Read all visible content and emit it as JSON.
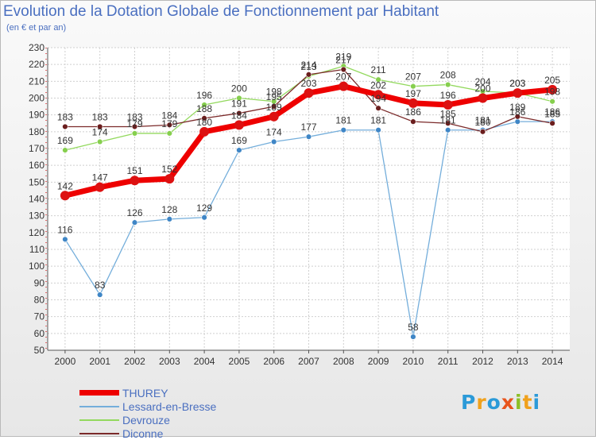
{
  "title": "Evolution de la Dotation Globale de Fonctionnement par Habitant",
  "subtitle": "(en € et par an)",
  "logo": {
    "letters": [
      {
        "ch": "P",
        "color": "#2b9ad8"
      },
      {
        "ch": "r",
        "color": "#f0a11c"
      },
      {
        "ch": "o",
        "color": "#2b9ad8"
      },
      {
        "ch": "x",
        "color": "#e8541c"
      },
      {
        "ch": "i",
        "color": "#8cbf26"
      },
      {
        "ch": "t",
        "color": "#f0a11c"
      },
      {
        "ch": "i",
        "color": "#2b9ad8"
      }
    ]
  },
  "chart_data": {
    "type": "line",
    "title": "Evolution de la Dotation Globale de Fonctionnement par Habitant",
    "subtitle": "(en € et par an)",
    "x": [
      2000,
      2001,
      2002,
      2003,
      2004,
      2005,
      2006,
      2007,
      2008,
      2009,
      2010,
      2011,
      2012,
      2013,
      2014
    ],
    "ylim": [
      50,
      230
    ],
    "yticks": [
      50,
      60,
      70,
      80,
      90,
      100,
      110,
      120,
      130,
      140,
      150,
      160,
      170,
      180,
      190,
      200,
      210,
      220,
      230
    ],
    "grid": true,
    "legend_position": "bottom-left",
    "series": [
      {
        "name": "THUREY",
        "color": "#ee0000",
        "marker": "#dd1111",
        "width": 7,
        "radius": 6,
        "values": [
          142,
          147,
          151,
          152,
          180,
          184,
          189,
          203,
          207,
          202,
          197,
          196,
          200,
          203,
          205
        ]
      },
      {
        "name": "Lessard-en-Bresse",
        "color": "#74aedb",
        "marker": "#3f86c6",
        "width": 1.3,
        "radius": 3.4,
        "values": [
          116,
          83,
          126,
          128,
          129,
          169,
          174,
          177,
          181,
          181,
          58,
          181,
          181,
          186,
          186
        ]
      },
      {
        "name": "Devrouze",
        "color": "#93d95e",
        "marker": "#86cf4e",
        "width": 1.3,
        "radius": 3.4,
        "values": [
          169,
          174,
          179,
          179,
          196,
          200,
          198,
          213,
          219,
          211,
          207,
          208,
          204,
          203,
          198
        ]
      },
      {
        "name": "Diconne",
        "color": "#7b2a2a",
        "marker": "#6b1e1e",
        "width": 1.3,
        "radius": 3.4,
        "values": [
          183,
          183,
          183,
          184,
          188,
          191,
          195,
          214,
          217,
          194,
          186,
          185,
          180,
          189,
          185
        ]
      }
    ]
  }
}
